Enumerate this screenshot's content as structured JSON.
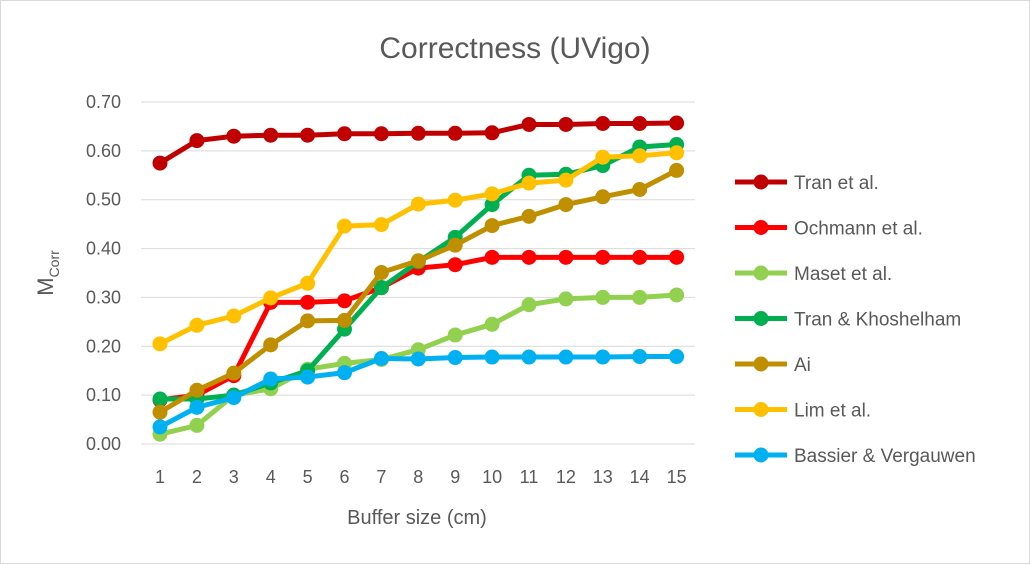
{
  "chart_data": {
    "type": "line",
    "title": "Correctness (UVigo)",
    "xlabel": "Buffer size (cm)",
    "ylabel_main": "M",
    "ylabel_sub": "Corr",
    "x": [
      1,
      2,
      3,
      4,
      5,
      6,
      7,
      8,
      9,
      10,
      11,
      12,
      13,
      14,
      15
    ],
    "x_tick_labels": [
      "1",
      "2",
      "3",
      "4",
      "5",
      "6",
      "7",
      "8",
      "9",
      "10",
      "11",
      "12",
      "13",
      "14",
      "15"
    ],
    "ylim": [
      0,
      0.7
    ],
    "y_ticks": [
      0,
      0.1,
      0.2,
      0.3,
      0.4,
      0.5,
      0.6,
      0.7
    ],
    "y_tick_labels": [
      "0.00",
      "0.10",
      "0.20",
      "0.30",
      "0.40",
      "0.50",
      "0.60",
      "0.70"
    ],
    "grid": "horizontal",
    "legend_position": "right",
    "series": [
      {
        "name": "Tran et al.",
        "color": "#c00000",
        "values": [
          0.575,
          0.621,
          0.63,
          0.632,
          0.632,
          0.635,
          0.635,
          0.636,
          0.636,
          0.637,
          0.654,
          0.654,
          0.656,
          0.656,
          0.657
        ]
      },
      {
        "name": "Ochmann et al.",
        "color": "#ff0000",
        "values": [
          0.09,
          0.1,
          0.14,
          0.29,
          0.29,
          0.293,
          0.32,
          0.36,
          0.367,
          0.382,
          0.382,
          0.382,
          0.382,
          0.382,
          0.382
        ]
      },
      {
        "name": "Maset et al.",
        "color": "#92d050",
        "values": [
          0.02,
          0.038,
          0.1,
          0.113,
          0.153,
          0.165,
          0.173,
          0.193,
          0.223,
          0.245,
          0.285,
          0.297,
          0.3,
          0.3,
          0.305
        ]
      },
      {
        "name": "Tran & Khoshelham",
        "color": "#00b050",
        "values": [
          0.092,
          0.092,
          0.1,
          0.125,
          0.15,
          0.235,
          0.32,
          0.373,
          0.423,
          0.49,
          0.55,
          0.552,
          0.57,
          0.608,
          0.613
        ]
      },
      {
        "name": "Ai",
        "color": "#bf8f00",
        "values": [
          0.065,
          0.11,
          0.145,
          0.203,
          0.252,
          0.253,
          0.351,
          0.375,
          0.407,
          0.447,
          0.466,
          0.49,
          0.506,
          0.521,
          0.56
        ]
      },
      {
        "name": "Lim et al.",
        "color": "#ffc000",
        "values": [
          0.205,
          0.243,
          0.262,
          0.299,
          0.329,
          0.446,
          0.449,
          0.491,
          0.499,
          0.512,
          0.534,
          0.54,
          0.587,
          0.59,
          0.596
        ]
      },
      {
        "name": "Bassier & Vergauwen",
        "color": "#00b0f0",
        "values": [
          0.035,
          0.075,
          0.095,
          0.133,
          0.137,
          0.146,
          0.175,
          0.174,
          0.177,
          0.178,
          0.178,
          0.178,
          0.178,
          0.179,
          0.179
        ]
      }
    ]
  }
}
